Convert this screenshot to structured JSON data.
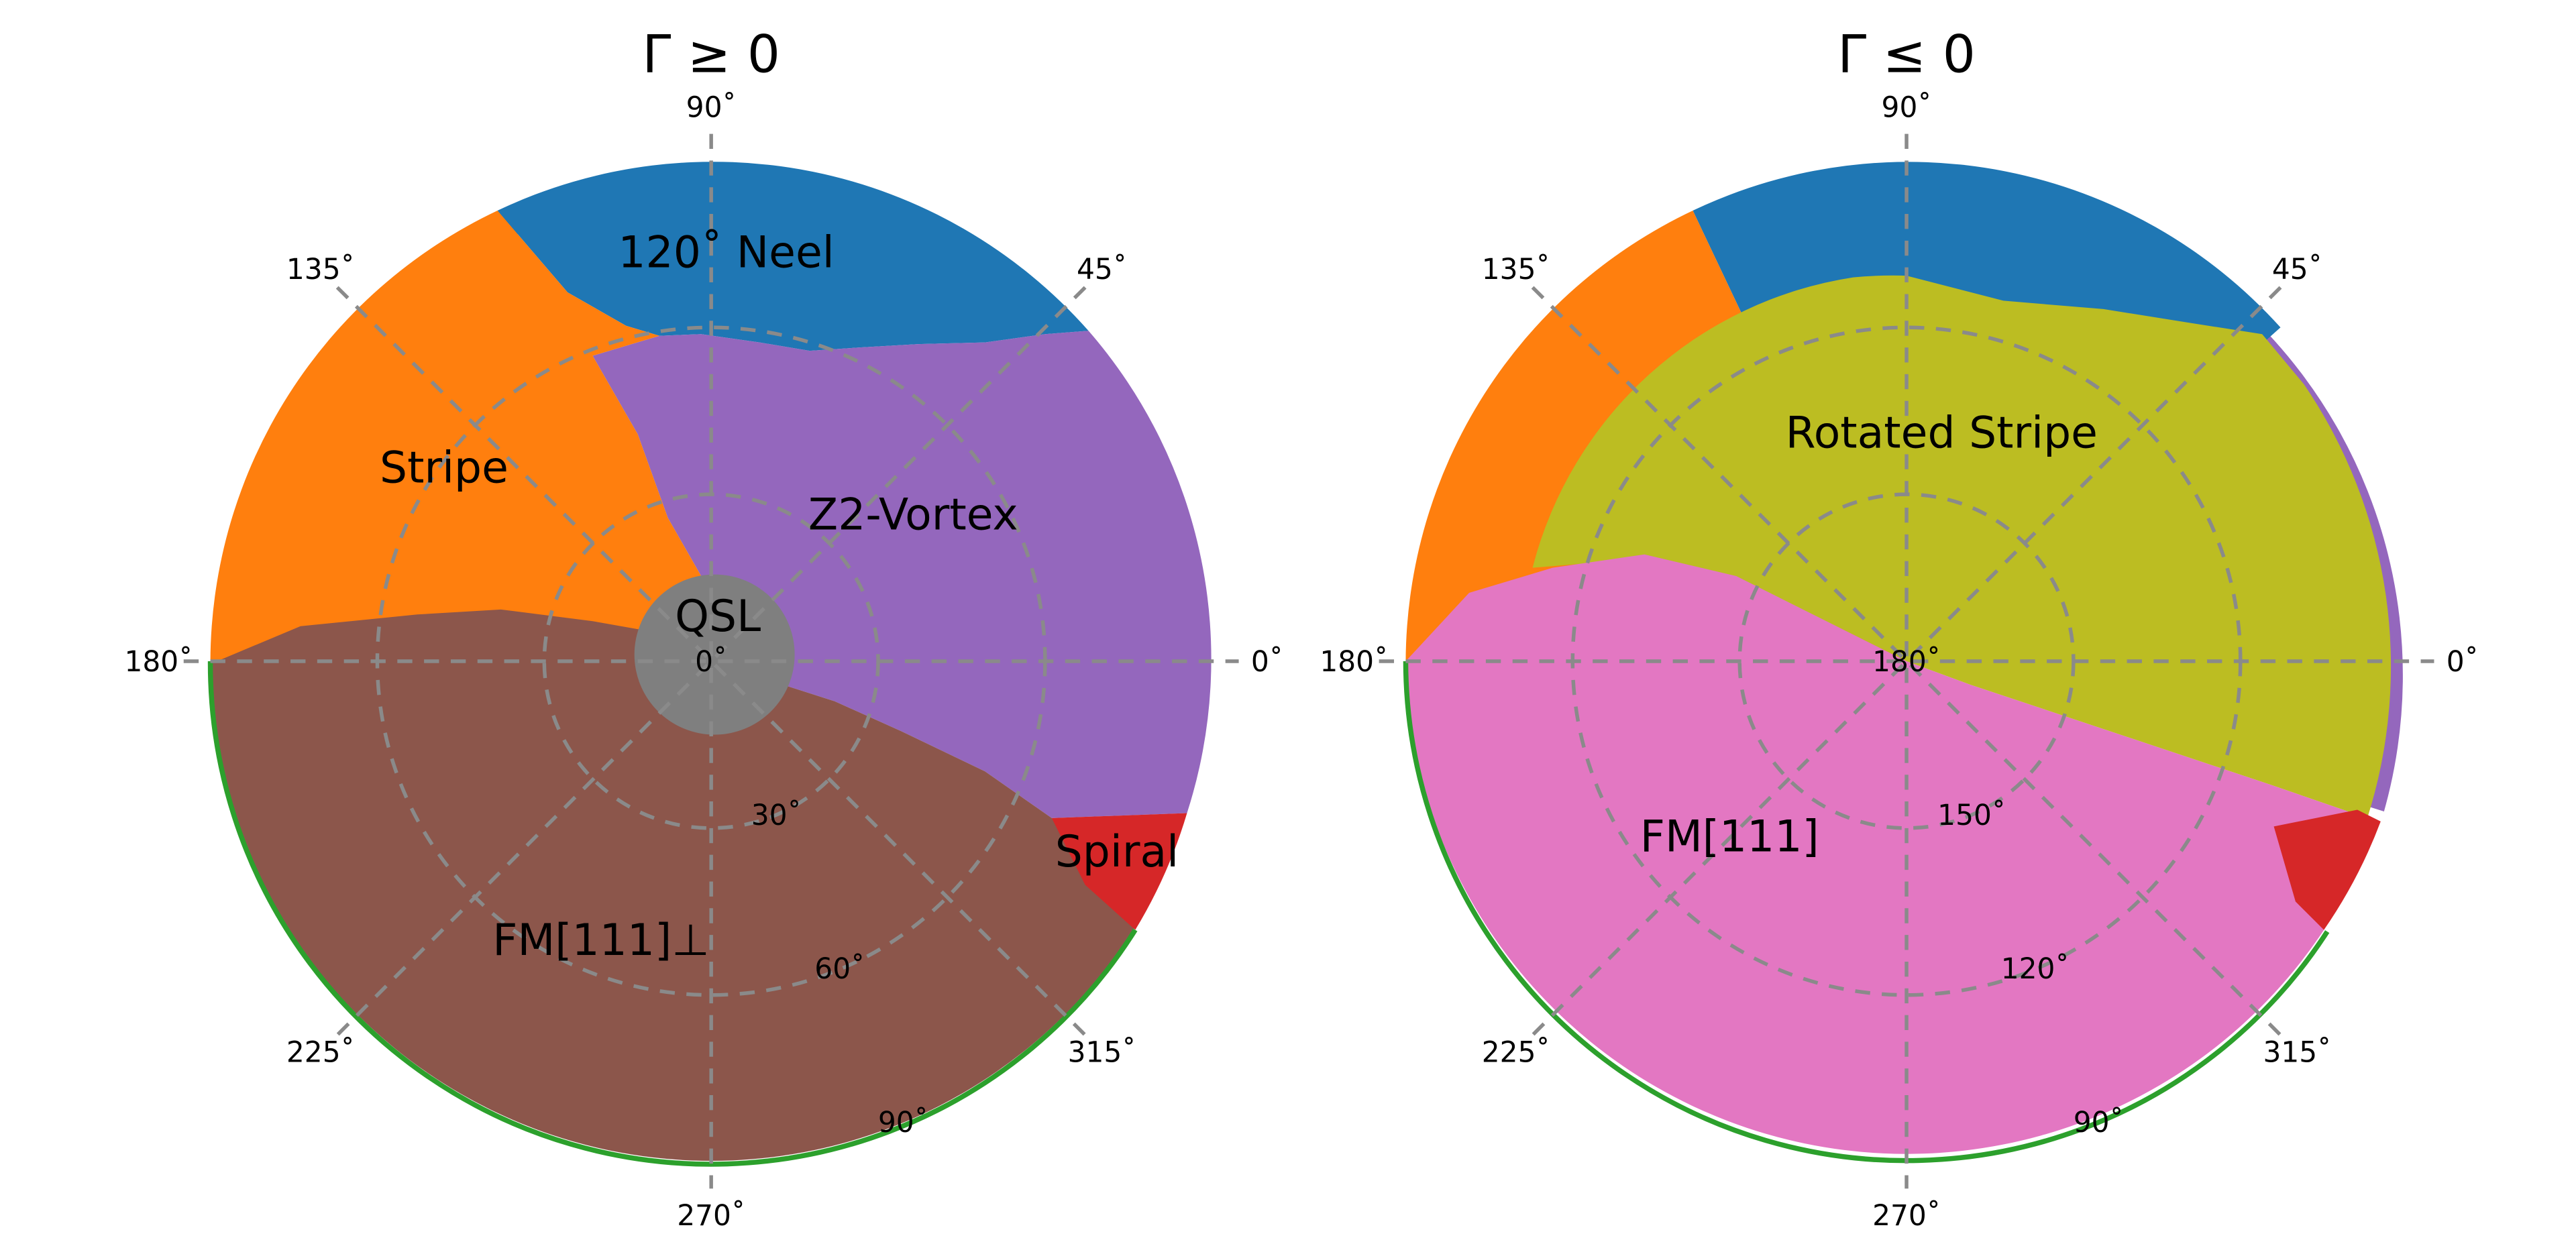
{
  "figure": {
    "panels": [
      {
        "title": "Γ ≥ 0",
        "angle_ticks": [
          "0˚",
          "45˚",
          "90˚",
          "135˚",
          "180˚",
          "225˚",
          "270˚",
          "315˚"
        ],
        "radial_ticks": [
          "0˚",
          "30˚",
          "60˚",
          "90˚"
        ],
        "regions": [
          {
            "name": "120˚ Neel",
            "color": "#1f77b4"
          },
          {
            "name": "Stripe",
            "color": "#ff7f0e"
          },
          {
            "name": "Z2-Vortex",
            "color": "#9467bd"
          },
          {
            "name": "QSL",
            "color": "#7f7f7f"
          },
          {
            "name": "Spiral",
            "color": "#d62728"
          },
          {
            "name": "FM[111]⊥",
            "color": "#8c564b"
          }
        ]
      },
      {
        "title": "Γ ≤ 0",
        "angle_ticks": [
          "0˚",
          "45˚",
          "90˚",
          "135˚",
          "180˚",
          "225˚",
          "270˚",
          "315˚"
        ],
        "radial_ticks": [
          "180˚",
          "150˚",
          "120˚",
          "90˚"
        ],
        "regions": [
          {
            "name": "",
            "color": "#1f77b4"
          },
          {
            "name": "",
            "color": "#ff7f0e"
          },
          {
            "name": "Rotated Stripe",
            "color": "#bcbd22"
          },
          {
            "name": "",
            "color": "#9467bd"
          },
          {
            "name": "",
            "color": "#d62728"
          },
          {
            "name": "FM[111]",
            "color": "#e377c2"
          }
        ]
      }
    ],
    "boundary_color": "#2ca02c"
  },
  "chart_data": [
    {
      "type": "polar-phase-diagram",
      "title": "Γ ≥ 0",
      "theta_ticks_deg": [
        0,
        45,
        90,
        135,
        180,
        225,
        270,
        315
      ],
      "r_ticks_labels": [
        "0˚",
        "30˚",
        "60˚",
        "90˚"
      ],
      "r_range_deg": [
        0,
        90
      ],
      "grid": true,
      "phases": [
        {
          "name": "120˚ Neel",
          "color": "#1f77b4",
          "theta_range_deg": [
            42,
            122
          ],
          "r_range_deg": [
            58,
            90
          ]
        },
        {
          "name": "Stripe",
          "color": "#ff7f0e",
          "theta_range_deg": [
            105,
            180
          ],
          "r_range_deg": [
            5,
            90
          ]
        },
        {
          "name": "Z2-Vortex",
          "color": "#9467bd",
          "theta_range_deg": [
            -26,
            122
          ],
          "r_range_deg": [
            5,
            90
          ]
        },
        {
          "name": "QSL",
          "color": "#7f7f7f",
          "theta_range_deg": [
            0,
            360
          ],
          "r_range_deg": [
            0,
            15
          ]
        },
        {
          "name": "Spiral",
          "color": "#d62728",
          "theta_range_deg": [
            -35,
            -26
          ],
          "r_range_deg": [
            75,
            90
          ]
        },
        {
          "name": "FM[111]⊥",
          "color": "#8c564b",
          "theta_range_deg": [
            180,
            335
          ],
          "r_range_deg": [
            0,
            90
          ]
        }
      ]
    },
    {
      "type": "polar-phase-diagram",
      "title": "Γ ≤ 0",
      "theta_ticks_deg": [
        0,
        45,
        90,
        135,
        180,
        225,
        270,
        315
      ],
      "r_ticks_labels": [
        "180˚",
        "150˚",
        "120˚",
        "90˚"
      ],
      "r_range_deg": [
        90,
        180
      ],
      "grid": true,
      "phases": [
        {
          "name": "",
          "color": "#1f77b4",
          "theta_range_deg": [
            44,
            118
          ],
          "r_range_deg": [
            90,
            115
          ]
        },
        {
          "name": "",
          "color": "#ff7f0e",
          "theta_range_deg": [
            118,
            180
          ],
          "r_range_deg": [
            90,
            115
          ]
        },
        {
          "name": "Rotated Stripe",
          "color": "#bcbd22",
          "theta_range_deg": [
            -20,
            160
          ],
          "r_range_deg": [
            95,
            180
          ]
        },
        {
          "name": "",
          "color": "#9467bd",
          "theta_range_deg": [
            -20,
            45
          ],
          "r_range_deg": [
            90,
            96
          ]
        },
        {
          "name": "",
          "color": "#d62728",
          "theta_range_deg": [
            -34,
            -22
          ],
          "r_range_deg": [
            90,
            100
          ]
        },
        {
          "name": "FM[111]",
          "color": "#e377c2",
          "theta_range_deg": [
            160,
            340
          ],
          "r_range_deg": [
            90,
            180
          ]
        }
      ]
    }
  ]
}
